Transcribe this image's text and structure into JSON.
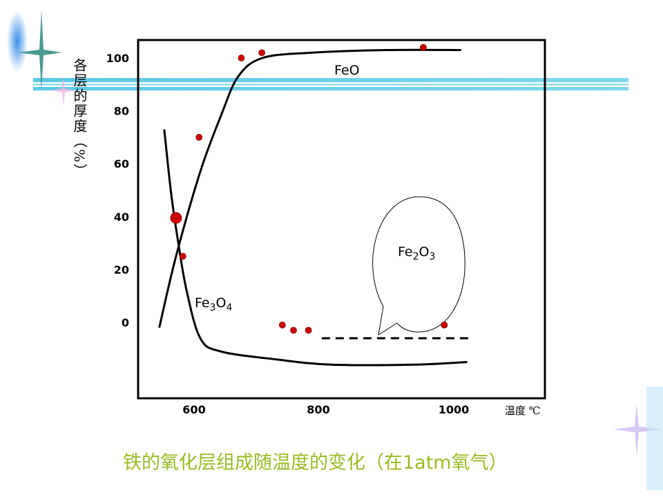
{
  "caption": "铁的氧化层组成随温度的变化（在1atm氧气）",
  "chart_data": {
    "type": "line",
    "title": "",
    "xlabel": "温度 ℃",
    "ylabel": "各层的厚度（%）",
    "x_ticks": [
      600,
      800,
      1000
    ],
    "y_ticks": [
      0,
      20,
      40,
      60,
      80,
      100
    ],
    "xlim": [
      520,
      1050
    ],
    "ylim": [
      -29,
      106
    ],
    "grid": false,
    "legend": "none",
    "series": [
      {
        "name": "FeO",
        "style": "solid",
        "color": "#000000",
        "x": [
          544,
          571,
          610,
          643,
          671,
          710,
          788,
          901,
          1011
        ],
        "y": [
          -2,
          25,
          57,
          78,
          93,
          100,
          102,
          103,
          103
        ]
      },
      {
        "name": "Fe3O4",
        "style": "solid",
        "color": "#000000",
        "x": [
          552,
          563,
          574,
          588,
          610,
          643,
          732,
          819,
          942,
          1020
        ],
        "y": [
          73,
          49,
          31,
          12,
          -6,
          -11,
          -14,
          -16,
          -16,
          -15
        ]
      },
      {
        "name": "Fe2O3",
        "style": "dashed",
        "color": "#000000",
        "x": [
          805,
          1023
        ],
        "y": [
          -6,
          -6
        ]
      }
    ],
    "points": {
      "color": "#cc0000",
      "x": [
        571,
        582,
        608,
        676,
        709,
        955,
        742,
        760,
        784,
        986
      ],
      "y": [
        39.5,
        25,
        70,
        100,
        102,
        104,
        -1,
        -3,
        -3,
        -1
      ],
      "highlight_index": 0
    }
  }
}
